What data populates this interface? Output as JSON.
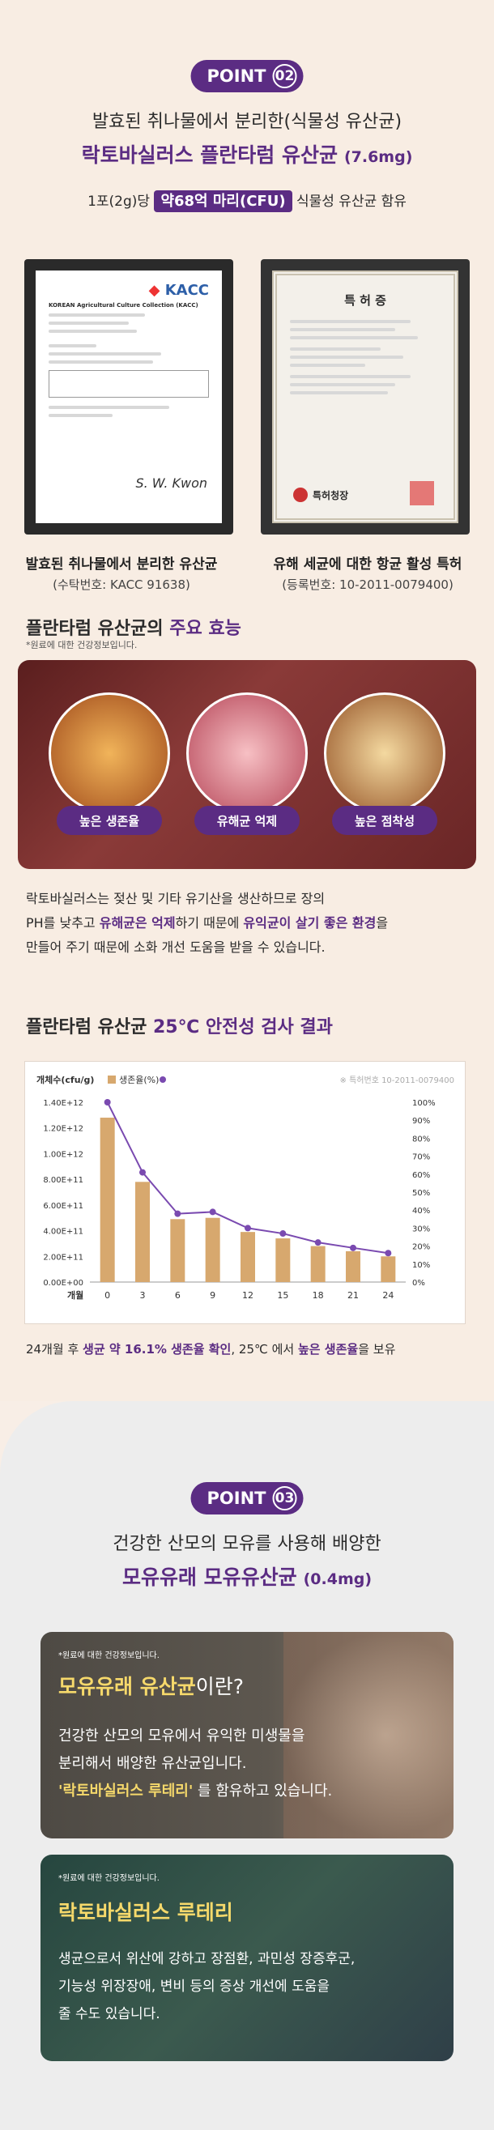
{
  "point2": {
    "label": "POINT",
    "num": "02",
    "line1": "발효된 취나물에서 분리한(식물성 유산균)",
    "line2": "락토바실러스 플란타럼 유산균",
    "line2_dose": "(7.6mg)",
    "line3_pre": "1포(2g)당",
    "line3_hl": "약68억 마리(CFU)",
    "line3_post": "식물성 유산균 함유"
  },
  "cert1": {
    "logo": "KACC",
    "title": "KOREAN Agricultural Culture Collection (KACC)",
    "sign": "S. W. Kwon",
    "caption_title": "발효된 취나물에서 분리한 유산균",
    "caption_sub": "(수탁번호: KACC 91638)"
  },
  "cert2": {
    "title": "특 허 증",
    "caption_title": "유해 세균에 대한 항균 활성 특허",
    "caption_sub": "(등록번호: 10-2011-0079400)",
    "issuer": "특허청장"
  },
  "effects": {
    "heading_pre": "플란타럼 유산균의 ",
    "heading_hl": "주요 효능",
    "note": "*원료에 대한 건강정보입니다.",
    "badges": [
      "높은 생존율",
      "유해균 억제",
      "높은 점착성"
    ],
    "desc1": "락토바실러스는 젖산 및 기타 유기산을 생산하므로 장의",
    "desc2_pre": "PH를 낮추고 ",
    "desc2_b1": "유해균은 억제",
    "desc2_mid": "하기 때문에 ",
    "desc2_b2": "유익균이 살기 좋은 환경",
    "desc2_post": "을",
    "desc3": "만들어 주기 때문에 소화 개선 도움을 받을 수 있습니다."
  },
  "stability": {
    "heading_pre": "플란타럼 유산균 ",
    "heading_hl": "25℃ 안전성 검사 결과",
    "result_pre": "24개월 후 ",
    "result_b": "생균 약 16.1% 생존율 확인",
    "result_mid": ", 25℃ 에서 ",
    "result_b2": "높은 생존율",
    "result_post": "을 보유"
  },
  "chart_data": {
    "type": "bar",
    "legend_left": "개체수(cfu/g)",
    "legend_right": "생존율(%)",
    "note": "※ 특허번호 10-2011-0079400",
    "x_label": "개월",
    "categories": [
      "0",
      "3",
      "6",
      "9",
      "12",
      "15",
      "18",
      "21",
      "24"
    ],
    "counts": [
      1280000000000.0,
      780000000000.0,
      490000000000.0,
      500000000000.0,
      390000000000.0,
      340000000000.0,
      280000000000.0,
      240000000000.0,
      200000000000.0
    ],
    "survival": [
      100,
      61,
      38,
      39,
      30,
      27,
      22,
      19,
      16.1
    ],
    "y_left_ticks": [
      "0.00E+00",
      "2.00E+11",
      "4.00E+11",
      "6.00E+11",
      "8.00E+11",
      "1.00E+12",
      "1.20E+12",
      "1.40E+12"
    ],
    "y_right_ticks": [
      "0%",
      "10%",
      "20%",
      "30%",
      "40%",
      "50%",
      "60%",
      "70%",
      "80%",
      "90%",
      "100%"
    ],
    "ylim_left": [
      0,
      1400000000000.0
    ],
    "ylim_right": [
      0,
      100
    ]
  },
  "point3": {
    "label": "POINT",
    "num": "03",
    "line1": "건강한 산모의 모유를 사용해 배양한",
    "line2": "모유유래 모유유산균",
    "line2_dose": "(0.4mg)"
  },
  "card1": {
    "note": "*원료에 대한 건강정보입니다.",
    "title_hl": "모유유래 유산균",
    "title_post": "이란?",
    "l1": "건강한 산모의 모유에서 유익한 미생물을",
    "l2": "분리해서 배양한 유산균입니다.",
    "l3_hl": "'락토바실러스 루테리'",
    "l3_post": " 를 함유하고 있습니다."
  },
  "card2": {
    "note": "*원료에 대한 건강정보입니다.",
    "title": "락토바실러스 루테리",
    "l1": "생균으로서 위산에 강하고 장점환, 과민성 장증후군,",
    "l2": "기능성 위장장애, 변비 등의 증상 개선에 도움을",
    "l3": "줄 수도 있습니다."
  },
  "colors": {
    "purple": "#5b2c83",
    "bar": "#d7a86e",
    "line": "#7a4ab0",
    "yellow": "#f6d96b"
  }
}
